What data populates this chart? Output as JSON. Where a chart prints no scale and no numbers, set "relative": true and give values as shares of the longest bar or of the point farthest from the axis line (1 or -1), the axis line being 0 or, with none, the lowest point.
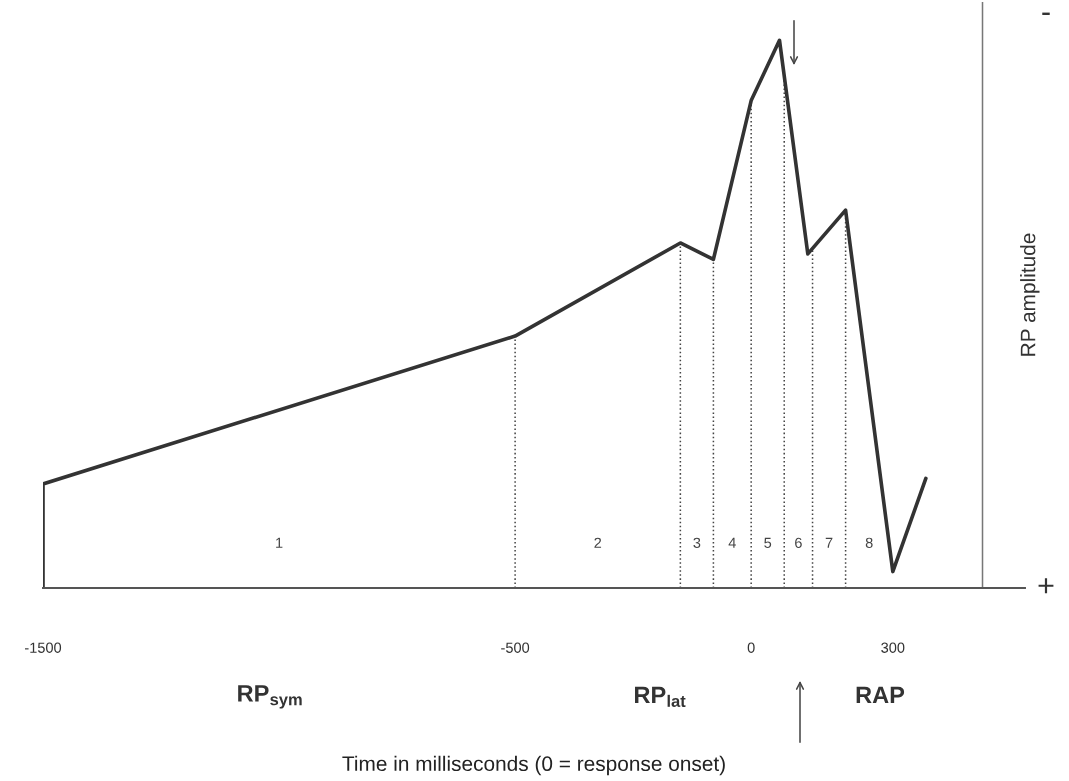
{
  "chart_data": {
    "type": "line",
    "relative": true,
    "x": [
      -1500,
      -1500,
      -500,
      -150,
      -80,
      0,
      60,
      120,
      200,
      300,
      370
    ],
    "series": [
      {
        "color": "#333333",
        "values": [
          0,
          0.19,
          0.46,
          0.63,
          0.6,
          0.89,
          1.0,
          0.61,
          0.69,
          0.03,
          0.2
        ]
      }
    ],
    "xlim": [
      -1500,
      580
    ],
    "xticks": [
      -1500,
      -500,
      0,
      300
    ],
    "xlabel": "Time in milliseconds (0 = response onset)",
    "ylabel": "RP amplitude",
    "ref_lines": [
      {
        "axis": "x",
        "value": -500,
        "line_style": "dotted",
        "color": "#444444"
      },
      {
        "axis": "x",
        "value": -150,
        "line_style": "dotted",
        "color": "#444444"
      },
      {
        "axis": "x",
        "value": -80,
        "line_style": "dotted",
        "color": "#444444"
      },
      {
        "axis": "x",
        "value": 0,
        "line_style": "dotted",
        "color": "#444444"
      },
      {
        "axis": "x",
        "value": 70,
        "line_style": "dotted",
        "color": "#444444"
      },
      {
        "axis": "x",
        "value": 130,
        "line_style": "dotted",
        "color": "#444444"
      },
      {
        "axis": "x",
        "value": 200,
        "line_style": "dotted",
        "color": "#444444"
      },
      {
        "axis": "x",
        "value": 490,
        "line_style": "solid",
        "color": "#777777"
      }
    ],
    "annotations": [
      "1",
      "2",
      "3",
      "4",
      "5",
      "6",
      "7",
      "8",
      "RP$_{sym}$",
      "RP$_{lat}$",
      "RAP",
      "-",
      "+"
    ],
    "grid": false,
    "legend": false,
    "marker": "none",
    "line_style": "solid"
  }
}
